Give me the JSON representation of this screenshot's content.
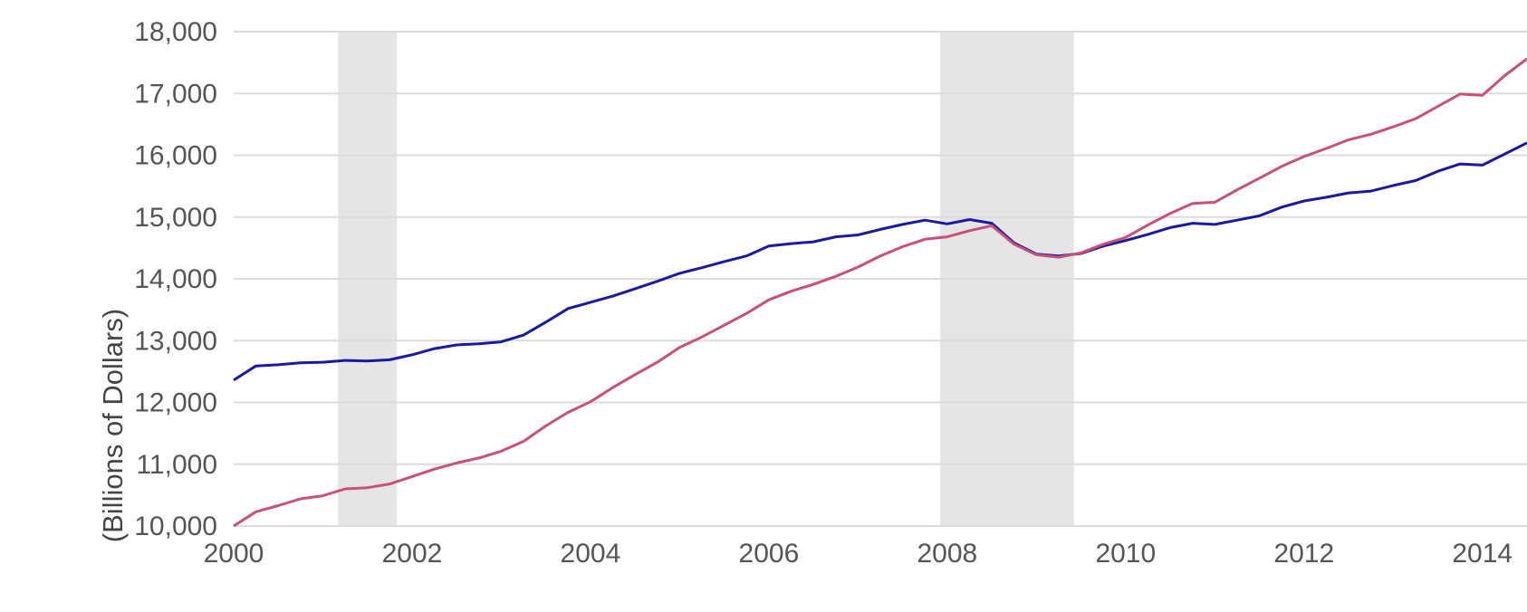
{
  "chart_data": {
    "type": "line",
    "title": "",
    "xlabel": "",
    "ylabel": "(Billions of Dollars)",
    "xlim": [
      2000,
      2014.5
    ],
    "ylim": [
      10000,
      18000
    ],
    "grid": true,
    "y_ticks": [
      10000,
      11000,
      12000,
      13000,
      14000,
      15000,
      16000,
      17000,
      18000
    ],
    "y_tick_labels": [
      "10,000",
      "11,000",
      "12,000",
      "13,000",
      "14,000",
      "15,000",
      "16,000",
      "17,000",
      "18,000"
    ],
    "x_ticks": [
      2000,
      2002,
      2004,
      2006,
      2008,
      2010,
      2012,
      2014
    ],
    "x_tick_labels": [
      "2000",
      "2002",
      "2004",
      "2006",
      "2008",
      "2010",
      "2012",
      "2014"
    ],
    "shaded_periods": [
      [
        2001.17,
        2001.83
      ],
      [
        2007.92,
        2009.42
      ]
    ],
    "shade_color": "#e5e5e5",
    "series": [
      {
        "color": "#1a1aa0",
        "points": [
          [
            2000.0,
            12360
          ],
          [
            2000.25,
            12590
          ],
          [
            2000.5,
            12610
          ],
          [
            2000.75,
            12640
          ],
          [
            2001.0,
            12650
          ],
          [
            2001.25,
            12680
          ],
          [
            2001.5,
            12670
          ],
          [
            2001.75,
            12690
          ],
          [
            2002.0,
            12770
          ],
          [
            2002.25,
            12870
          ],
          [
            2002.5,
            12930
          ],
          [
            2002.75,
            12950
          ],
          [
            2003.0,
            12980
          ],
          [
            2003.25,
            13090
          ],
          [
            2003.5,
            13300
          ],
          [
            2003.75,
            13520
          ],
          [
            2004.0,
            13620
          ],
          [
            2004.25,
            13720
          ],
          [
            2004.5,
            13840
          ],
          [
            2004.75,
            13960
          ],
          [
            2005.0,
            14090
          ],
          [
            2005.25,
            14180
          ],
          [
            2005.5,
            14280
          ],
          [
            2005.75,
            14370
          ],
          [
            2006.0,
            14530
          ],
          [
            2006.25,
            14570
          ],
          [
            2006.5,
            14600
          ],
          [
            2006.75,
            14680
          ],
          [
            2007.0,
            14710
          ],
          [
            2007.25,
            14800
          ],
          [
            2007.5,
            14880
          ],
          [
            2007.75,
            14950
          ],
          [
            2008.0,
            14890
          ],
          [
            2008.25,
            14960
          ],
          [
            2008.5,
            14900
          ],
          [
            2008.75,
            14580
          ],
          [
            2009.0,
            14400
          ],
          [
            2009.25,
            14370
          ],
          [
            2009.5,
            14410
          ],
          [
            2009.75,
            14530
          ],
          [
            2010.0,
            14620
          ],
          [
            2010.25,
            14720
          ],
          [
            2010.5,
            14830
          ],
          [
            2010.75,
            14900
          ],
          [
            2011.0,
            14880
          ],
          [
            2011.25,
            14950
          ],
          [
            2011.5,
            15020
          ],
          [
            2011.75,
            15160
          ],
          [
            2012.0,
            15260
          ],
          [
            2012.25,
            15320
          ],
          [
            2012.5,
            15390
          ],
          [
            2012.75,
            15420
          ],
          [
            2013.0,
            15510
          ],
          [
            2013.25,
            15590
          ],
          [
            2013.5,
            15740
          ],
          [
            2013.75,
            15860
          ],
          [
            2014.0,
            15840
          ],
          [
            2014.25,
            16020
          ],
          [
            2014.5,
            16200
          ]
        ]
      },
      {
        "color": "#c9507a",
        "points": [
          [
            2000.0,
            10000
          ],
          [
            2000.25,
            10230
          ],
          [
            2000.5,
            10330
          ],
          [
            2000.75,
            10440
          ],
          [
            2001.0,
            10490
          ],
          [
            2001.25,
            10600
          ],
          [
            2001.5,
            10620
          ],
          [
            2001.75,
            10680
          ],
          [
            2002.0,
            10800
          ],
          [
            2002.25,
            10920
          ],
          [
            2002.5,
            11020
          ],
          [
            2002.75,
            11100
          ],
          [
            2003.0,
            11210
          ],
          [
            2003.25,
            11370
          ],
          [
            2003.5,
            11620
          ],
          [
            2003.75,
            11840
          ],
          [
            2004.0,
            12010
          ],
          [
            2004.25,
            12240
          ],
          [
            2004.5,
            12450
          ],
          [
            2004.75,
            12650
          ],
          [
            2005.0,
            12890
          ],
          [
            2005.25,
            13060
          ],
          [
            2005.5,
            13250
          ],
          [
            2005.75,
            13440
          ],
          [
            2006.0,
            13660
          ],
          [
            2006.25,
            13800
          ],
          [
            2006.5,
            13910
          ],
          [
            2006.75,
            14040
          ],
          [
            2007.0,
            14190
          ],
          [
            2007.25,
            14370
          ],
          [
            2007.5,
            14520
          ],
          [
            2007.75,
            14640
          ],
          [
            2008.0,
            14680
          ],
          [
            2008.25,
            14780
          ],
          [
            2008.5,
            14860
          ],
          [
            2008.75,
            14560
          ],
          [
            2009.0,
            14390
          ],
          [
            2009.25,
            14350
          ],
          [
            2009.5,
            14420
          ],
          [
            2009.75,
            14560
          ],
          [
            2010.0,
            14670
          ],
          [
            2010.25,
            14870
          ],
          [
            2010.5,
            15060
          ],
          [
            2010.75,
            15220
          ],
          [
            2011.0,
            15240
          ],
          [
            2011.25,
            15440
          ],
          [
            2011.5,
            15630
          ],
          [
            2011.75,
            15820
          ],
          [
            2012.0,
            15980
          ],
          [
            2012.25,
            16110
          ],
          [
            2012.5,
            16250
          ],
          [
            2012.75,
            16340
          ],
          [
            2013.0,
            16460
          ],
          [
            2013.25,
            16590
          ],
          [
            2013.5,
            16790
          ],
          [
            2013.75,
            16990
          ],
          [
            2014.0,
            16970
          ],
          [
            2014.25,
            17290
          ],
          [
            2014.5,
            17560
          ]
        ]
      }
    ]
  }
}
